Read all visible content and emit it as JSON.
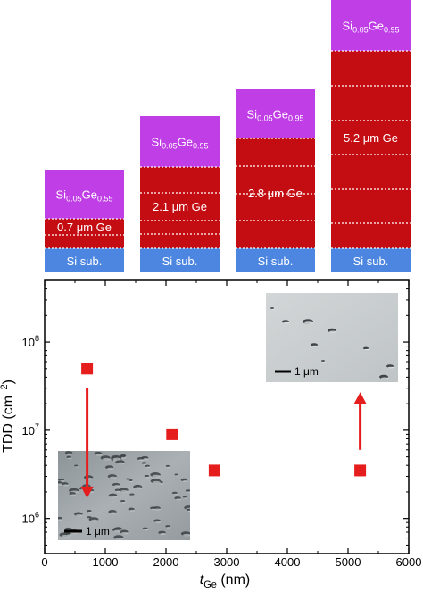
{
  "colors": {
    "cap": "#c03ee6",
    "ge": "#c40d12",
    "sub": "#4d86e0",
    "marker": "#e51d1d",
    "arrow": "#e51d1d",
    "text": "#ffffff",
    "axis": "#000000"
  },
  "stacks": [
    {
      "cap_base": "Si",
      "cap_sub1": "0.05",
      "cap_mid": "Ge",
      "cap_sub2": "0.55",
      "ge_label": "0.7 μm Ge",
      "sub_label": "Si sub."
    },
    {
      "cap_base": "Si",
      "cap_sub1": "0.05",
      "cap_mid": "Ge",
      "cap_sub2": "0.95",
      "ge_label": "2.1 μm Ge",
      "sub_label": "Si sub."
    },
    {
      "cap_base": "Si",
      "cap_sub1": "0.05",
      "cap_mid": "Ge",
      "cap_sub2": "0.95",
      "ge_label": "2.8 μm Ge",
      "sub_label": "Si sub."
    },
    {
      "cap_base": "Si",
      "cap_sub1": "0.05",
      "cap_mid": "Ge",
      "cap_sub2": "0.95",
      "ge_label": "5.2 μm Ge",
      "sub_label": "Si sub."
    }
  ],
  "insets": {
    "left_scale": "1 μm",
    "right_scale": "1 μm"
  },
  "chart_data": {
    "type": "scatter",
    "xlabel_italic": "t",
    "xlabel_sub": "Ge",
    "xlabel_unit": " (nm)",
    "ylabel_main": "TDD (cm",
    "ylabel_sup": "−2",
    "ylabel_end": ")",
    "xlim": [
      0,
      6000
    ],
    "ylim": [
      400000,
      500000000
    ],
    "yscale": "log",
    "x_ticks": [
      0,
      1000,
      2000,
      3000,
      4000,
      5000,
      6000
    ],
    "x_tick_labels": [
      "0",
      "1000",
      "2000",
      "3000",
      "4000",
      "5000",
      "6000"
    ],
    "y_ticks": [
      {
        "base": "10",
        "exp": "6",
        "value": 1000000
      },
      {
        "base": "10",
        "exp": "7",
        "value": 10000000
      },
      {
        "base": "10",
        "exp": "8",
        "value": 100000000
      }
    ],
    "series": [
      {
        "x": [
          700,
          2100,
          2800,
          5200
        ],
        "y": [
          50000000,
          9000000,
          3500000,
          3500000
        ]
      }
    ],
    "annotations": [
      {
        "type": "arrow",
        "direction": "down",
        "from_x": 700,
        "from_y": 30000000,
        "to_x": 700,
        "to_y": 1700000
      },
      {
        "type": "arrow",
        "direction": "up",
        "from_x": 5200,
        "from_y": 6000000,
        "to_x": 5200,
        "to_y": 27000000
      }
    ]
  }
}
